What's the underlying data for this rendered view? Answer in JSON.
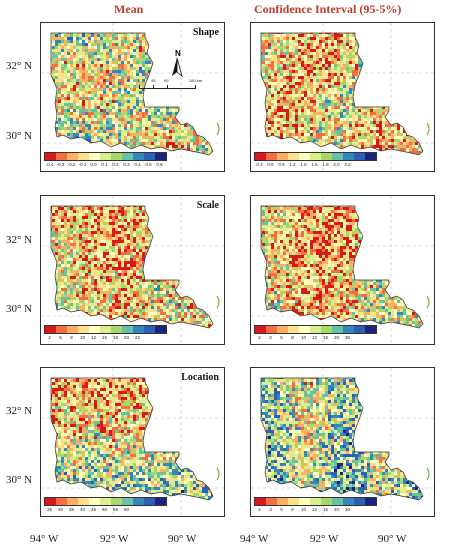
{
  "column_titles": {
    "left": "Mean",
    "right": "Confidence Interval (95-5%)"
  },
  "lat_labels": [
    "32° N",
    "30° N"
  ],
  "lon_labels": [
    "94° W",
    "92° W",
    "90° W",
    "94° W",
    "92° W",
    "90° W"
  ],
  "panels": [
    {
      "title": "Shape",
      "legend_ticks": [
        "-0.4",
        "-0.3",
        "-0.2",
        "-0.1",
        "0.0",
        "0.1",
        "0.2",
        "0.3",
        "0.4",
        "0.5",
        "0.6"
      ],
      "color_scheme": "diverging-rainbow",
      "north_label": "N",
      "scale_labels": [
        "0",
        "45",
        "90",
        "180 km"
      ]
    },
    {
      "title": "",
      "legend_ticks": [
        "0.3",
        "0.6",
        "0.9",
        "1.2",
        "1.5",
        "1.6",
        "1.8",
        "2.0",
        "2.2",
        "",
        ""
      ],
      "color_scheme": "diverging-rainbow"
    },
    {
      "title": "Scale",
      "legend_ticks": [
        "2",
        "5",
        "8",
        "10",
        "12",
        "15",
        "18",
        "20",
        "22",
        "",
        ""
      ],
      "color_scheme": "diverging-rainbow"
    },
    {
      "title": "",
      "legend_ticks": [
        "2",
        "3",
        "5",
        "8",
        "10",
        "12",
        "15",
        "20",
        "30",
        "",
        ""
      ],
      "color_scheme": "diverging-rainbow"
    },
    {
      "title": "Location",
      "legend_ticks": [
        "25",
        "30",
        "35",
        "40",
        "45",
        "50",
        "55",
        "60",
        "",
        "",
        ""
      ],
      "color_scheme": "diverging-rainbow"
    },
    {
      "title": "",
      "legend_ticks": [
        "2",
        "3",
        "5",
        "8",
        "10",
        "12",
        "15",
        "20",
        "30",
        "",
        ""
      ],
      "color_scheme": "diverging-rainbow"
    }
  ],
  "palette": [
    "#d7191c",
    "#f46d43",
    "#fdae61",
    "#fee08b",
    "#ffffbf",
    "#d9ef8b",
    "#a6d96a",
    "#66c2a5",
    "#3288bd",
    "#2c5fb8",
    "#1a237e"
  ],
  "map_background_color": "#ffffff",
  "grid_color": "#bbbbbb"
}
